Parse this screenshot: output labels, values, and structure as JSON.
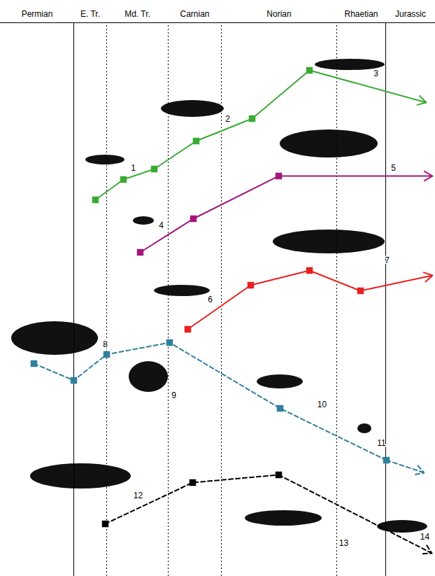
{
  "chart_data": {
    "type": "line",
    "xlim": [
      0,
      622
    ],
    "ylim": [
      0,
      823
    ],
    "xticks": [],
    "yticks": [],
    "tick_labels": false,
    "periods": [
      {
        "label": "Permian",
        "start": 0,
        "end": 105
      },
      {
        "label": "E. Tr.",
        "start": 105,
        "end": 152
      },
      {
        "label": "Md. Tr.",
        "start": 152,
        "end": 240
      },
      {
        "label": "Carnian",
        "start": 240,
        "end": 316
      },
      {
        "label": "Norian",
        "start": 316,
        "end": 481
      },
      {
        "label": "Rhaetian",
        "start": 481,
        "end": 551
      },
      {
        "label": "Jurassic",
        "start": 551,
        "end": 622
      }
    ],
    "boundaries": [
      {
        "x": 105,
        "line_style": "solid"
      },
      {
        "x": 152,
        "line_style": "dotted"
      },
      {
        "x": 240,
        "line_style": "dotted"
      },
      {
        "x": 316,
        "line_style": "dotted"
      },
      {
        "x": 481,
        "line_style": "dotted"
      },
      {
        "x": 551,
        "line_style": "solid"
      }
    ],
    "series": [
      {
        "color": "#3aaa35",
        "line_style": "solid",
        "marker": "square",
        "x": [
          136,
          176,
          220,
          280,
          360,
          442,
          609
        ],
        "values": [
          538,
          567,
          582,
          622,
          654,
          723,
          677
        ]
      },
      {
        "color": "#a3167e",
        "line_style": "solid",
        "marker": "square",
        "x": [
          200,
          276,
          398,
          618
        ],
        "values": [
          463,
          511,
          572,
          572
        ]
      },
      {
        "color": "#e8201f",
        "line_style": "solid",
        "marker": "square",
        "x": [
          268,
          358,
          442,
          515,
          618
        ],
        "values": [
          353,
          416,
          437,
          408,
          430
        ]
      },
      {
        "color": "#2f7f9e",
        "line_style": "dashed",
        "marker": "square",
        "x": [
          48,
          105,
          152,
          242,
          400,
          552,
          606
        ],
        "values": [
          304,
          280,
          317,
          334,
          240,
          166,
          148
        ]
      },
      {
        "color": "#000000",
        "line_style": "dashed",
        "marker": "square",
        "x": [
          150,
          275,
          398,
          617
        ],
        "values": [
          75,
          134,
          145,
          33
        ]
      }
    ],
    "annotations": [
      {
        "text": "1",
        "x": 190,
        "y": 583
      },
      {
        "text": "2",
        "x": 325,
        "y": 653
      },
      {
        "text": "3",
        "x": 537,
        "y": 718
      },
      {
        "text": "4",
        "x": 230,
        "y": 501
      },
      {
        "text": "5",
        "x": 562,
        "y": 583
      },
      {
        "text": "6",
        "x": 300,
        "y": 395
      },
      {
        "text": "7",
        "x": 553,
        "y": 451
      },
      {
        "text": "8",
        "x": 150,
        "y": 331
      },
      {
        "text": "9",
        "x": 248,
        "y": 258
      },
      {
        "text": "10",
        "x": 460,
        "y": 245
      },
      {
        "text": "11",
        "x": 545,
        "y": 190
      },
      {
        "text": "12",
        "x": 197,
        "y": 115
      },
      {
        "text": "13",
        "x": 491,
        "y": 47
      },
      {
        "text": "14",
        "x": 607,
        "y": 56
      }
    ]
  }
}
